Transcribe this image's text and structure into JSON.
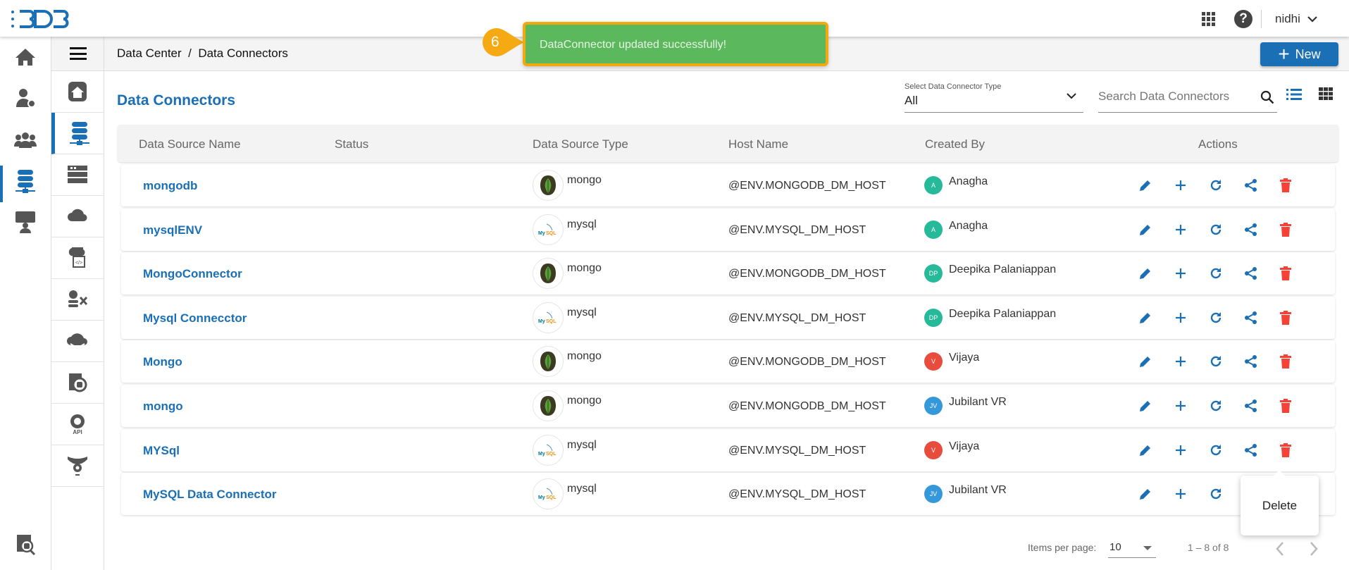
{
  "app": {
    "logo_text": "BDB",
    "user": "nidhi"
  },
  "breadcrumb": [
    "Data Center",
    "/",
    "Data Connectors"
  ],
  "new_button": "New",
  "toast": {
    "badge": "6",
    "message": "DataConnector updated successfully!",
    "color": "#5cb85c",
    "border": "#f0a90f"
  },
  "page_title": "Data Connectors",
  "filter": {
    "label": "Select Data Connector Type",
    "value": "All"
  },
  "search": {
    "placeholder": "Search Data Connectors"
  },
  "columns": [
    "Data Source Name",
    "Status",
    "Data Source Type",
    "Host Name",
    "Created By",
    "Actions"
  ],
  "rows": [
    {
      "name": "mongodb",
      "type": "mongo",
      "host": "@ENV.MONGODB_DM_HOST",
      "initials": "A",
      "created_by": "Anagha",
      "avatar_color": "#26b99a"
    },
    {
      "name": "mysqlENV",
      "type": "mysql",
      "host": "@ENV.MYSQL_DM_HOST",
      "initials": "A",
      "created_by": "Anagha",
      "avatar_color": "#26b99a"
    },
    {
      "name": "MongoConnector",
      "type": "mongo",
      "host": "@ENV.MONGODB_DM_HOST",
      "initials": "DP",
      "created_by": "Deepika Palaniappan",
      "avatar_color": "#26b99a"
    },
    {
      "name": "Mysql Connecctor",
      "type": "mysql",
      "host": "@ENV.MYSQL_DM_HOST",
      "initials": "DP",
      "created_by": "Deepika Palaniappan",
      "avatar_color": "#26b99a"
    },
    {
      "name": "Mongo",
      "type": "mongo",
      "host": "@ENV.MONGODB_DM_HOST",
      "initials": "V",
      "created_by": "Vijaya",
      "avatar_color": "#e74c3c"
    },
    {
      "name": "mongo",
      "type": "mongo",
      "host": "@ENV.MONGODB_DM_HOST",
      "initials": "JV",
      "created_by": "Jubilant VR",
      "avatar_color": "#3498db"
    },
    {
      "name": "MYSql",
      "type": "mysql",
      "host": "@ENV.MYSQL_DM_HOST",
      "initials": "V",
      "created_by": "Vijaya",
      "avatar_color": "#e74c3c"
    },
    {
      "name": "MySQL Data Connector",
      "type": "mysql",
      "host": "@ENV.MYSQL_DM_HOST",
      "initials": "JV",
      "created_by": "Jubilant VR",
      "avatar_color": "#3498db"
    }
  ],
  "actions": [
    "edit-icon",
    "add-icon",
    "refresh-icon",
    "share-icon",
    "delete-icon"
  ],
  "tooltip": "Delete",
  "pagination": {
    "items_label": "Items per page:",
    "per_page": "10",
    "range": "1 – 8 of 8"
  },
  "colors": {
    "primary": "#1a6fb5",
    "danger": "#f44336"
  }
}
